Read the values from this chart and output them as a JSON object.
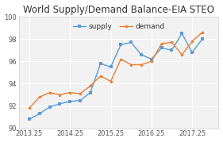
{
  "title": "World Supply/Demand Balance-EIA STEO",
  "supply_x": [
    2013.25,
    2013.5,
    2013.75,
    2014.0,
    2014.25,
    2014.5,
    2014.75,
    2015.0,
    2015.25,
    2015.5,
    2015.75,
    2016.0,
    2016.25,
    2016.5,
    2016.75,
    2017.0,
    2017.25,
    2017.5
  ],
  "supply_y": [
    90.8,
    91.3,
    91.9,
    92.2,
    92.4,
    92.5,
    93.2,
    95.8,
    95.5,
    97.5,
    97.7,
    96.6,
    96.2,
    97.2,
    97.0,
    98.5,
    96.8,
    98.0
  ],
  "demand_x": [
    2013.25,
    2013.5,
    2013.75,
    2014.0,
    2014.25,
    2014.5,
    2014.75,
    2015.0,
    2015.25,
    2015.5,
    2015.75,
    2016.0,
    2016.25,
    2016.5,
    2016.75,
    2017.0,
    2017.25,
    2017.5
  ],
  "demand_y": [
    91.8,
    92.8,
    93.2,
    93.0,
    93.2,
    93.1,
    93.8,
    94.7,
    94.2,
    96.2,
    95.7,
    95.7,
    96.0,
    97.6,
    97.7,
    96.6,
    97.8,
    98.6
  ],
  "supply_color": "#5B9BD5",
  "demand_color": "#ED7D31",
  "ylim": [
    90,
    100
  ],
  "xlim": [
    2013.0,
    2017.9
  ],
  "xticks": [
    2013.25,
    2014.25,
    2015.25,
    2016.25,
    2017.25
  ],
  "xtick_labels": [
    "2013.25",
    "2014.25",
    "2015.25",
    "2016.25",
    "2017.25"
  ],
  "yticks": [
    90,
    92,
    94,
    96,
    98,
    100
  ],
  "ytick_labels": [
    "90",
    "92",
    "94",
    "96",
    "98",
    "100"
  ],
  "plot_bg_color": "#F2F2F2",
  "fig_bg_color": "#FFFFFF",
  "grid_color": "#FFFFFF",
  "legend_supply": "supply",
  "legend_demand": "demand",
  "title_fontsize": 8.5,
  "axis_fontsize": 6,
  "legend_fontsize": 6.5
}
